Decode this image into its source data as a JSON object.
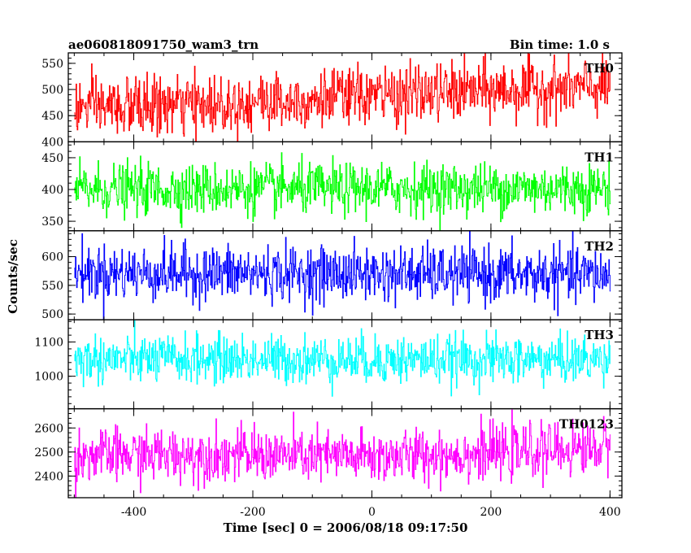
{
  "header": {
    "title": "ae060818091750_wam3_trn",
    "bin_time": "Bin time: 1.0 s"
  },
  "axes": {
    "xlabel": "Time [sec] 0 = 2006/08/18 09:17:50",
    "ylabel": "Counts/sec",
    "xlim": [
      -510,
      420
    ],
    "xticks": [
      "-400",
      "-200",
      "0",
      "200",
      "400"
    ],
    "xtick_values": [
      -400,
      -200,
      0,
      200,
      400
    ]
  },
  "chart_data": {
    "type": "line",
    "x_range": [
      -500,
      400
    ],
    "bin_time_s": 1.0,
    "panels": [
      {
        "name": "TH0",
        "color": "#ff0000",
        "ylim": [
          400,
          570
        ],
        "ytick_values": [
          400,
          450,
          500,
          550
        ],
        "ytick_labels": [
          "400",
          "450",
          "500",
          "550"
        ],
        "trend": [
          [
            -500,
            465
          ],
          [
            -300,
            470
          ],
          [
            0,
            488
          ],
          [
            200,
            498
          ],
          [
            400,
            505
          ]
        ],
        "noise_sd": 28
      },
      {
        "name": "TH1",
        "color": "#00ff00",
        "ylim": [
          335,
          475
        ],
        "ytick_values": [
          350,
          400,
          450
        ],
        "ytick_labels": [
          "350",
          "400",
          "450"
        ],
        "trend": [
          [
            -500,
            400
          ],
          [
            400,
            402
          ]
        ],
        "noise_sd": 20
      },
      {
        "name": "TH2",
        "color": "#0000ff",
        "ylim": [
          490,
          645
        ],
        "ytick_values": [
          500,
          550,
          600
        ],
        "ytick_labels": [
          "500",
          "550",
          "600"
        ],
        "trend": [
          [
            -500,
            572
          ],
          [
            400,
            568
          ]
        ],
        "noise_sd": 24
      },
      {
        "name": "TH3",
        "color": "#00ffff",
        "ylim": [
          905,
          1165
        ],
        "ytick_values": [
          1000,
          1100
        ],
        "ytick_labels": [
          "1000",
          "1100"
        ],
        "trend": [
          [
            -500,
            1050
          ],
          [
            400,
            1048
          ]
        ],
        "noise_sd": 35
      },
      {
        "name": "TH0123",
        "color": "#ff00ff",
        "ylim": [
          2310,
          2680
        ],
        "ytick_values": [
          2400,
          2500,
          2600
        ],
        "ytick_labels": [
          "2400",
          "2500",
          "2600"
        ],
        "trend": [
          [
            -500,
            2485
          ],
          [
            -300,
            2490
          ],
          [
            0,
            2480
          ],
          [
            200,
            2495
          ],
          [
            400,
            2520
          ]
        ],
        "noise_sd": 55
      }
    ]
  }
}
